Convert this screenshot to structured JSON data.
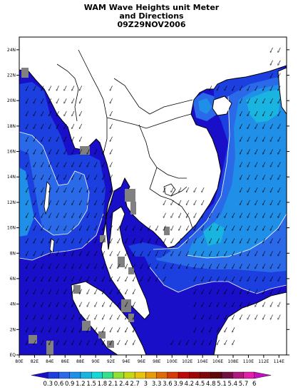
{
  "title": {
    "line1": "WAM Wave Heights unit Meter",
    "line2": "and Directions",
    "line3": "09Z29NOV2006"
  },
  "map": {
    "lon_range": [
      80,
      115
    ],
    "lat_range": [
      0,
      25
    ],
    "lon_ticks": [
      "80E",
      "82E",
      "84E",
      "86E",
      "88E",
      "90E",
      "92E",
      "94E",
      "96E",
      "98E",
      "100E",
      "102E",
      "104E",
      "106E",
      "108E",
      "110E",
      "112E",
      "114E"
    ],
    "lat_ticks": [
      "EQ",
      "2N",
      "4N",
      "6N",
      "8N",
      "10N",
      "12N",
      "14N",
      "16N",
      "18N",
      "20N",
      "22N",
      "24N"
    ]
  },
  "colorbar": {
    "labels": [
      "0.3",
      "0.6",
      "0.9",
      "1.2",
      "1.5",
      "1.8",
      "2.1",
      "2.4",
      "2.7",
      "3",
      "3.3",
      "3.6",
      "3.9",
      "4.2",
      "4.5",
      "4.8",
      "5.1",
      "5.4",
      "5.7",
      "6"
    ],
    "colors": [
      "#1a0fc8",
      "#1c3fe0",
      "#2a6ae8",
      "#1f8fe8",
      "#19b4e0",
      "#12d8d8",
      "#35e08a",
      "#8fe030",
      "#c8d810",
      "#e8c40c",
      "#e89a08",
      "#e06a08",
      "#d83a08",
      "#c00808",
      "#a00808",
      "#800808",
      "#600808",
      "#701040",
      "#b01880",
      "#e020a8",
      "#c010c0"
    ]
  },
  "colors": {
    "land": "#ffffff",
    "masked": "#808080",
    "coast": "#000000"
  }
}
